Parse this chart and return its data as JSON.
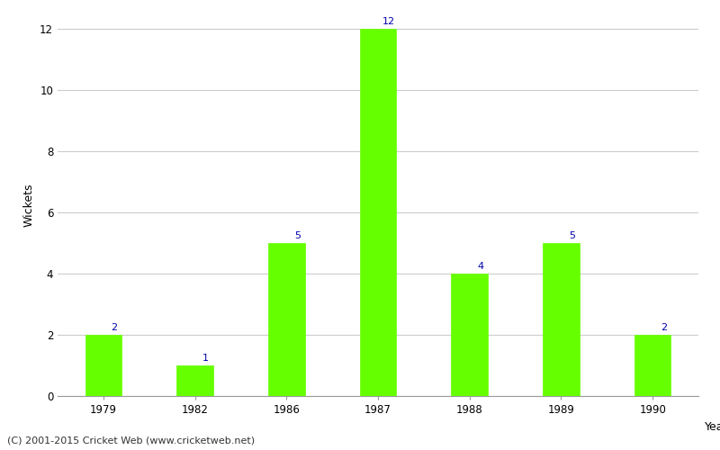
{
  "years": [
    "1979",
    "1982",
    "1986",
    "1987",
    "1988",
    "1989",
    "1990"
  ],
  "wickets": [
    2,
    1,
    5,
    12,
    4,
    5,
    2
  ],
  "bar_color": "#66ff00",
  "bar_edge_color": "#66ff00",
  "label_color": "#0000aa",
  "xlabel": "Year",
  "ylabel": "Wickets",
  "ylim": [
    0,
    12.5
  ],
  "yticks": [
    0,
    2,
    4,
    6,
    8,
    10,
    12
  ],
  "grid_color": "#cccccc",
  "background_color": "#ffffff",
  "footer": "(C) 2001-2015 Cricket Web (www.cricketweb.net)",
  "label_fontsize": 8,
  "axis_label_fontsize": 9,
  "tick_fontsize": 8.5,
  "footer_fontsize": 8,
  "bar_width": 0.4
}
